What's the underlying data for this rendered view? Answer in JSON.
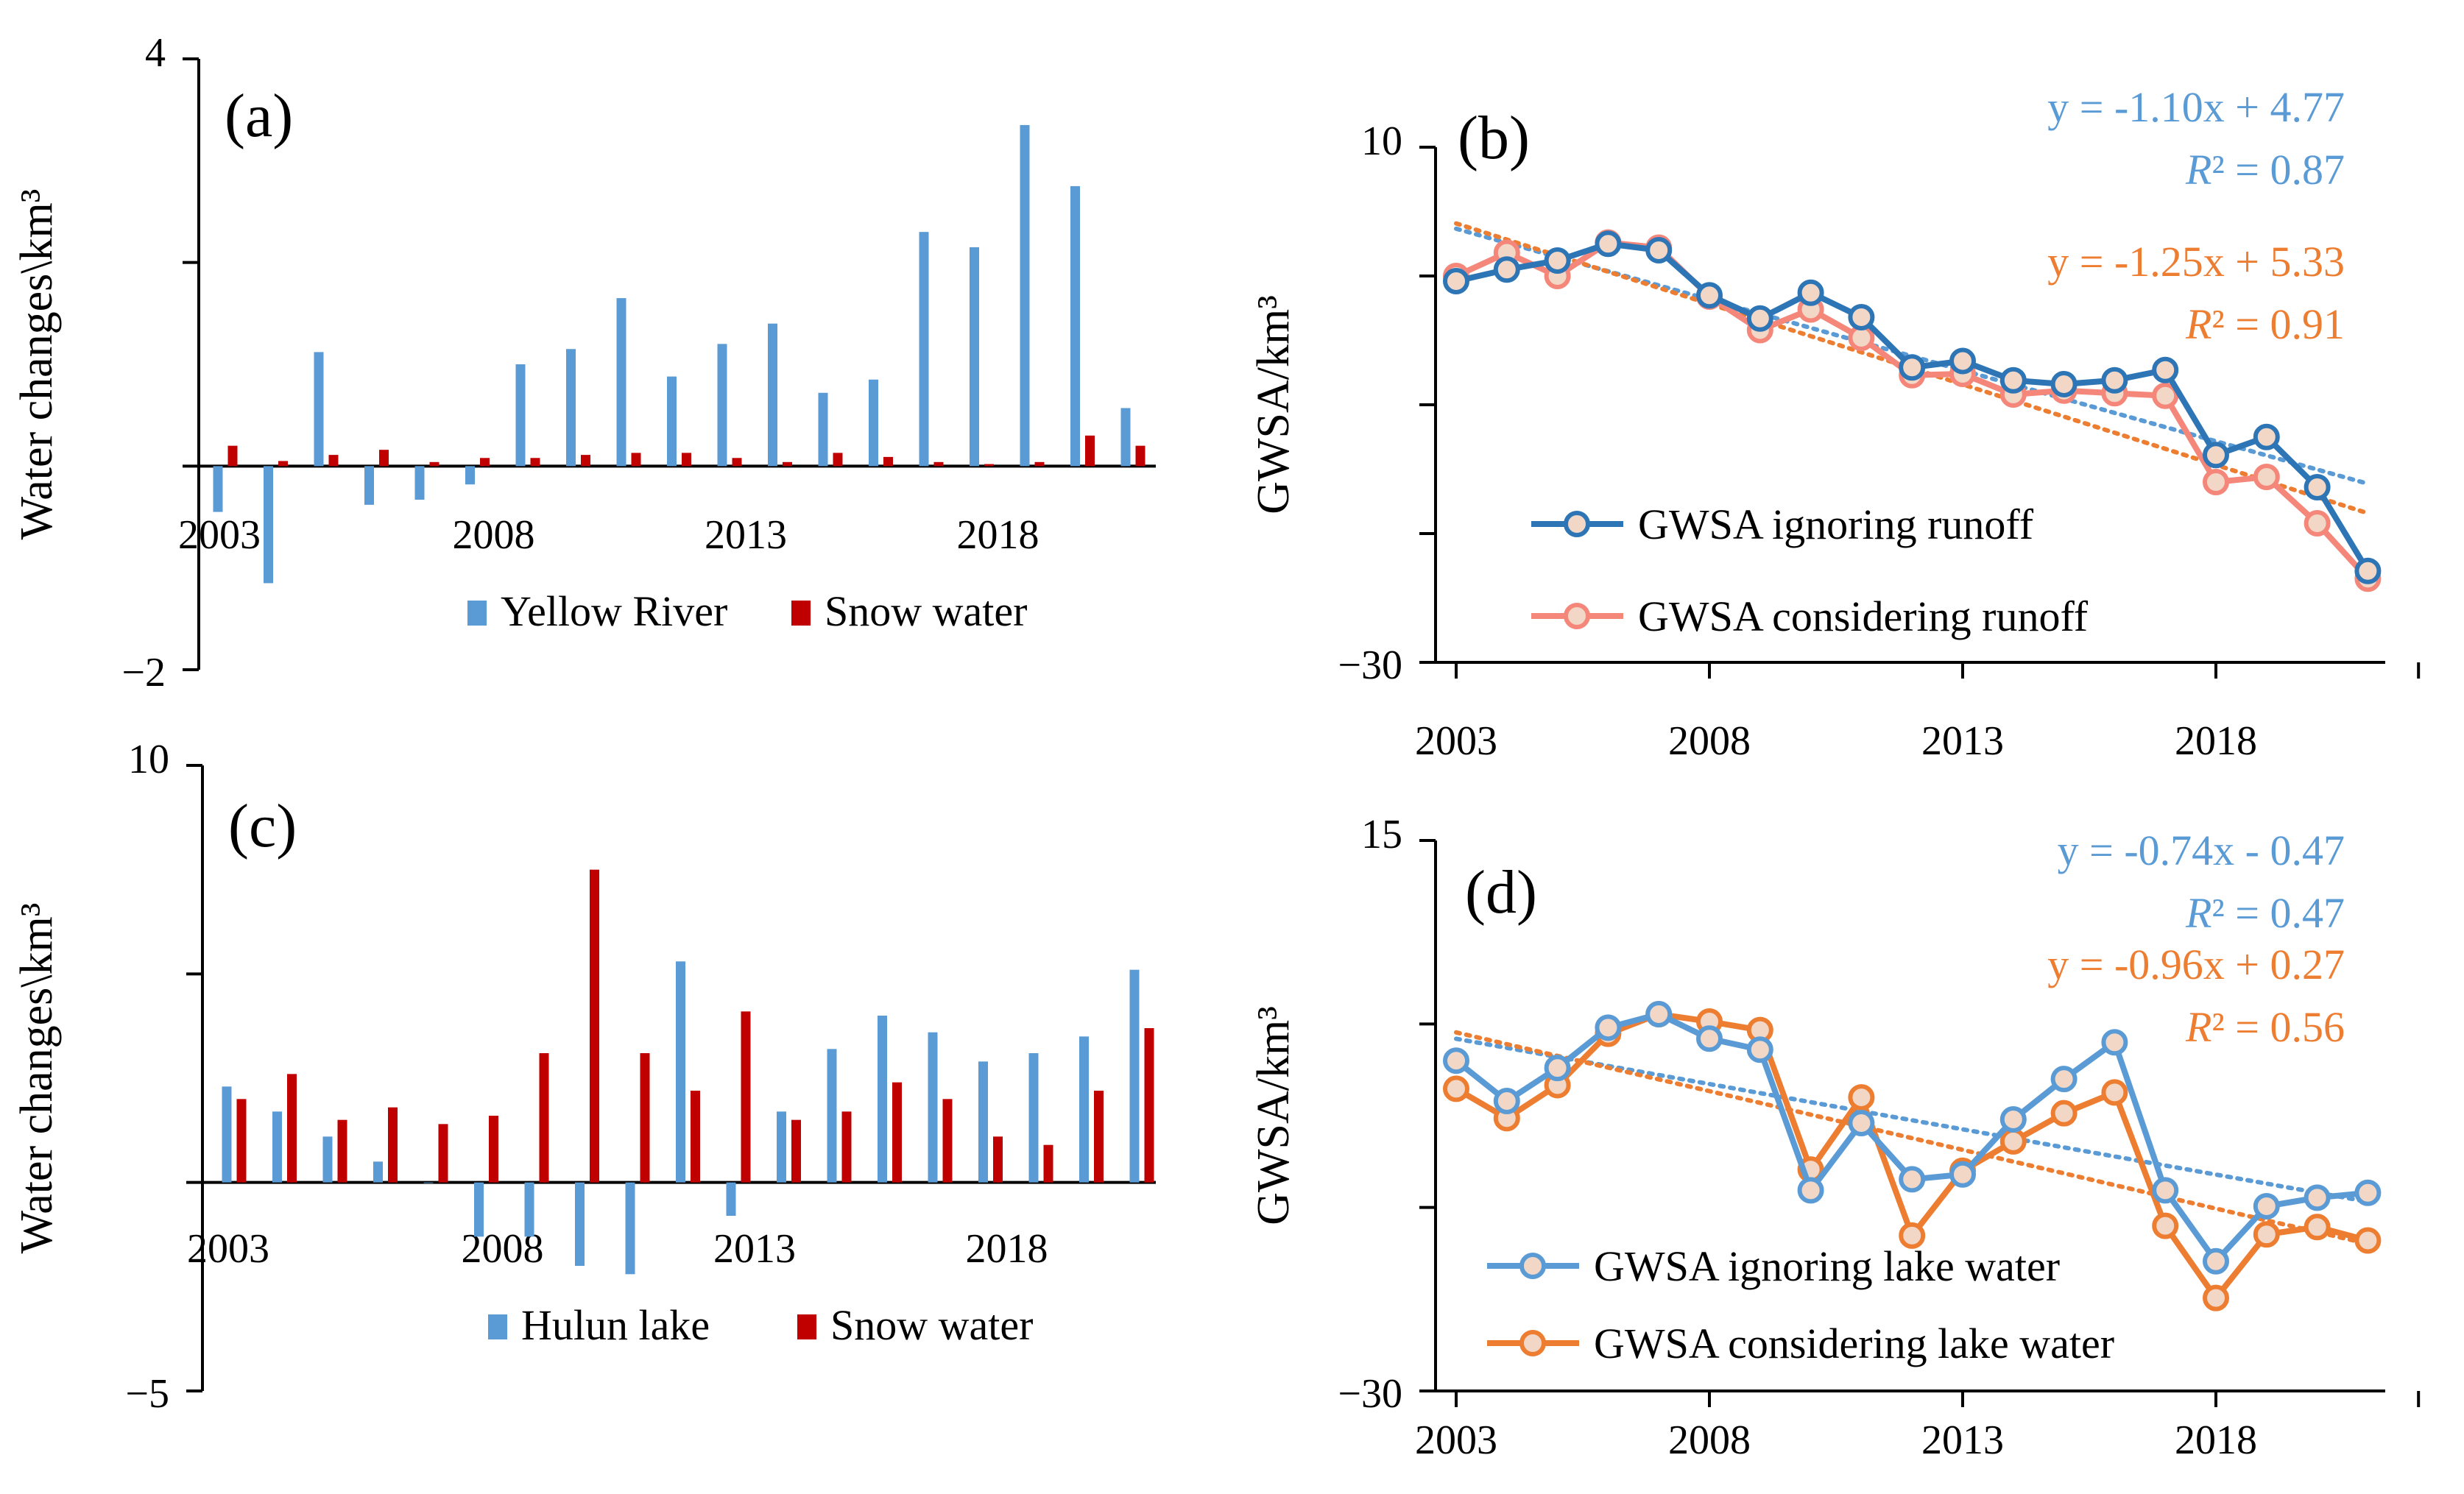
{
  "chart_data": [
    {
      "id": "a",
      "type": "bar",
      "panel_label": "(a)",
      "ylabel": "Water changes\\km³",
      "ylim": [
        -2,
        4
      ],
      "yticks": [
        {
          "v": 4,
          "label": "4"
        },
        {
          "v": 2,
          "label": ""
        },
        {
          "v": 0,
          "label": ""
        },
        {
          "v": -2,
          "label": "−2"
        }
      ],
      "xtick_labels": [
        "2003",
        "2008",
        "2013",
        "2018"
      ],
      "categories": [
        "2003",
        "2004",
        "2005",
        "2006",
        "2007",
        "2008",
        "2009",
        "2010",
        "2011",
        "2012",
        "2013",
        "2014",
        "2015",
        "2016",
        "2017",
        "2018",
        "2019",
        "2020",
        "2021"
      ],
      "series": [
        {
          "name": "Yellow River",
          "color": "#5B9BD5",
          "values": [
            -0.45,
            -1.15,
            1.12,
            -0.38,
            -0.33,
            -0.18,
            1.0,
            1.15,
            1.65,
            0.88,
            1.2,
            1.4,
            0.72,
            0.85,
            2.3,
            2.15,
            3.35,
            2.75,
            0.57
          ]
        },
        {
          "name": "Snow water",
          "color": "#C00000",
          "values": [
            0.2,
            0.05,
            0.11,
            0.16,
            0.04,
            0.08,
            0.08,
            0.11,
            0.13,
            0.13,
            0.08,
            0.04,
            0.13,
            0.09,
            0.04,
            0.02,
            0.04,
            0.3,
            0.2
          ]
        }
      ],
      "legend_position": "bottom-right"
    },
    {
      "id": "b",
      "type": "line",
      "panel_label": "(b)",
      "ylabel": "GWSA/km³",
      "ylim": [
        -30,
        10
      ],
      "yticks": [
        {
          "v": 10,
          "label": "10"
        },
        {
          "v": 0,
          "label": ""
        },
        {
          "v": -10,
          "label": ""
        },
        {
          "v": -20,
          "label": ""
        },
        {
          "v": -30,
          "label": "−30"
        }
      ],
      "xtick_labels": [
        "2003",
        "2008",
        "2013",
        "2018"
      ],
      "x": [
        2003,
        2004,
        2005,
        2006,
        2007,
        2008,
        2009,
        2010,
        2011,
        2012,
        2013,
        2014,
        2015,
        2016,
        2017,
        2018,
        2019,
        2020,
        2021
      ],
      "series": [
        {
          "name": "GWSA ignoring runoff",
          "color": "#2E75B6",
          "values": [
            -0.4,
            0.5,
            1.2,
            2.5,
            2.0,
            -1.5,
            -3.3,
            -1.3,
            -3.2,
            -7.1,
            -6.6,
            -8.1,
            -8.4,
            -8.1,
            -7.3,
            -13.9,
            -12.5,
            -16.4,
            -22.9
          ]
        },
        {
          "name": "GWSA considering runoff",
          "color": "#F4877A",
          "values": [
            0.0,
            1.8,
            0.0,
            2.6,
            2.2,
            -1.6,
            -4.2,
            -2.6,
            -4.8,
            -7.7,
            -7.6,
            -9.2,
            -8.9,
            -9.1,
            -9.3,
            -16.0,
            -15.6,
            -19.2,
            -23.5
          ]
        }
      ],
      "trendlines": [
        {
          "equation": "y = -1.10x + 4.77",
          "r2_label": "R² = 0.87",
          "slope": -1.1,
          "intercept": 4.77,
          "color": "#5B9BD5"
        },
        {
          "equation": "y = -1.25x + 5.33",
          "r2_label": "R² = 0.91",
          "slope": -1.25,
          "intercept": 5.33,
          "color": "#ED7D31"
        }
      ],
      "legend_position": "bottom-left"
    },
    {
      "id": "c",
      "type": "bar",
      "panel_label": "(c)",
      "ylabel": "Water changes\\km³",
      "ylim": [
        -5,
        10
      ],
      "yticks": [
        {
          "v": 10,
          "label": "10"
        },
        {
          "v": 5,
          "label": ""
        },
        {
          "v": 0,
          "label": ""
        },
        {
          "v": -5,
          "label": "−5"
        }
      ],
      "xtick_labels": [
        "2003",
        "2008",
        "2013",
        "2018"
      ],
      "categories": [
        "2003",
        "2004",
        "2005",
        "2006",
        "2007",
        "2008",
        "2009",
        "2010",
        "2011",
        "2012",
        "2013",
        "2014",
        "2015",
        "2016",
        "2017",
        "2018",
        "2019",
        "2020",
        "2021"
      ],
      "series": [
        {
          "name": "Hulun lake",
          "color": "#5B9BD5",
          "values": [
            2.3,
            1.7,
            1.1,
            0.5,
            0.0,
            -1.3,
            -1.3,
            -2.0,
            -2.2,
            5.3,
            -0.8,
            1.7,
            3.2,
            4.0,
            3.6,
            2.9,
            3.1,
            3.5,
            5.1
          ]
        },
        {
          "name": "Snow water",
          "color": "#C00000",
          "values": [
            2.0,
            2.6,
            1.5,
            1.8,
            1.4,
            1.6,
            3.1,
            7.5,
            3.1,
            2.2,
            4.1,
            1.5,
            1.7,
            2.4,
            2.0,
            1.1,
            0.9,
            2.2,
            3.7
          ]
        }
      ],
      "legend_position": "bottom-right"
    },
    {
      "id": "d",
      "type": "line",
      "panel_label": "(d)",
      "ylabel": "GWSA/km³",
      "ylim": [
        -30,
        15
      ],
      "yticks": [
        {
          "v": 15,
          "label": "15"
        },
        {
          "v": 0,
          "label": ""
        },
        {
          "v": -15,
          "label": ""
        },
        {
          "v": -30,
          "label": "−30"
        }
      ],
      "xtick_labels": [
        "2003",
        "2008",
        "2013",
        "2018"
      ],
      "x": [
        2003,
        2004,
        2005,
        2006,
        2007,
        2008,
        2009,
        2010,
        2011,
        2012,
        2013,
        2014,
        2015,
        2016,
        2017,
        2018,
        2019,
        2020,
        2021
      ],
      "series": [
        {
          "name": "GWSA ignoring lake water",
          "color": "#5B9BD5",
          "values": [
            -3.0,
            -6.3,
            -3.6,
            -0.3,
            0.8,
            -1.2,
            -2.1,
            -13.6,
            -8.1,
            -12.7,
            -12.3,
            -7.8,
            -4.5,
            -1.5,
            -13.6,
            -19.4,
            -14.9,
            -14.2,
            -13.8
          ]
        },
        {
          "name": "GWSA considering lake water",
          "color": "#ED7D31",
          "values": [
            -5.3,
            -7.7,
            -5.0,
            -0.8,
            0.8,
            0.2,
            -0.5,
            -11.9,
            -6.0,
            -17.3,
            -12.0,
            -9.6,
            -7.3,
            -5.6,
            -16.5,
            -22.4,
            -17.2,
            -16.6,
            -17.7
          ]
        }
      ],
      "trendlines": [
        {
          "equation": "y = -0.74x - 0.47",
          "r2_label": "R² = 0.47",
          "slope": -0.74,
          "intercept": -0.47,
          "color": "#5B9BD5"
        },
        {
          "equation": "y = -0.96x + 0.27",
          "r2_label": "R² = 0.56",
          "slope": -0.96,
          "intercept": 0.27,
          "color": "#ED7D31"
        }
      ],
      "legend_position": "bottom-left"
    }
  ]
}
